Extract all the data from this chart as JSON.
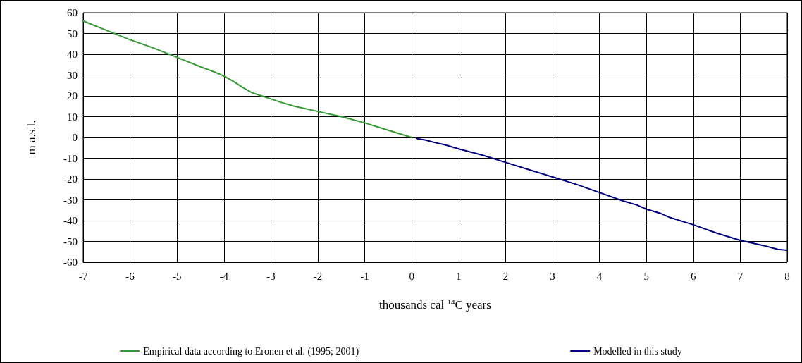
{
  "chart_data": {
    "type": "line",
    "xlabel": "thousands cal $^{14}$C years",
    "ylabel": "m a.s.l.",
    "xlim": [
      -7,
      8
    ],
    "xticks": [
      -7,
      -6,
      -5,
      -4,
      -3,
      -2,
      -1,
      0,
      1,
      2,
      3,
      4,
      5,
      6,
      7,
      8
    ],
    "ylim": [
      -60,
      60
    ],
    "yticks": [
      -60,
      -50,
      -40,
      -30,
      -20,
      -10,
      0,
      10,
      20,
      30,
      40,
      50,
      60
    ],
    "grid": true,
    "legend": "bottom",
    "marker": "none",
    "line_style": "solid",
    "series": [
      {
        "name": "Empirical data according to Eronen et al. (1995; 2001)",
        "color": "#339933",
        "x": [
          -7,
          -6.5,
          -6,
          -5.5,
          -5,
          -4.5,
          -4.2,
          -4,
          -3.8,
          -3.6,
          -3.4,
          -3.2,
          -3,
          -2.8,
          -2.5,
          -2,
          -1.5,
          -1,
          -0.5,
          0
        ],
        "values": [
          56,
          51.5,
          47,
          43,
          38.5,
          34,
          31.5,
          29.5,
          27,
          24,
          21.5,
          20,
          18.5,
          17,
          15,
          12.5,
          10,
          7,
          3.5,
          0
        ]
      },
      {
        "name": "Modelled in this study",
        "color": "#000080",
        "x": [
          0.1,
          0.3,
          0.5,
          0.7,
          1,
          1.5,
          2,
          2.5,
          3,
          3.5,
          4,
          4.5,
          4.8,
          5,
          5.3,
          5.5,
          6,
          6.5,
          7,
          7.5,
          7.8,
          8
        ],
        "values": [
          -0.5,
          -1.3,
          -2.5,
          -3.5,
          -5.5,
          -8.5,
          -12,
          -15.5,
          -19,
          -22.5,
          -26.5,
          -30.5,
          -32.5,
          -34.5,
          -36.5,
          -38.5,
          -42,
          -46,
          -49.5,
          -52,
          -53.8,
          -54.2
        ]
      }
    ]
  }
}
